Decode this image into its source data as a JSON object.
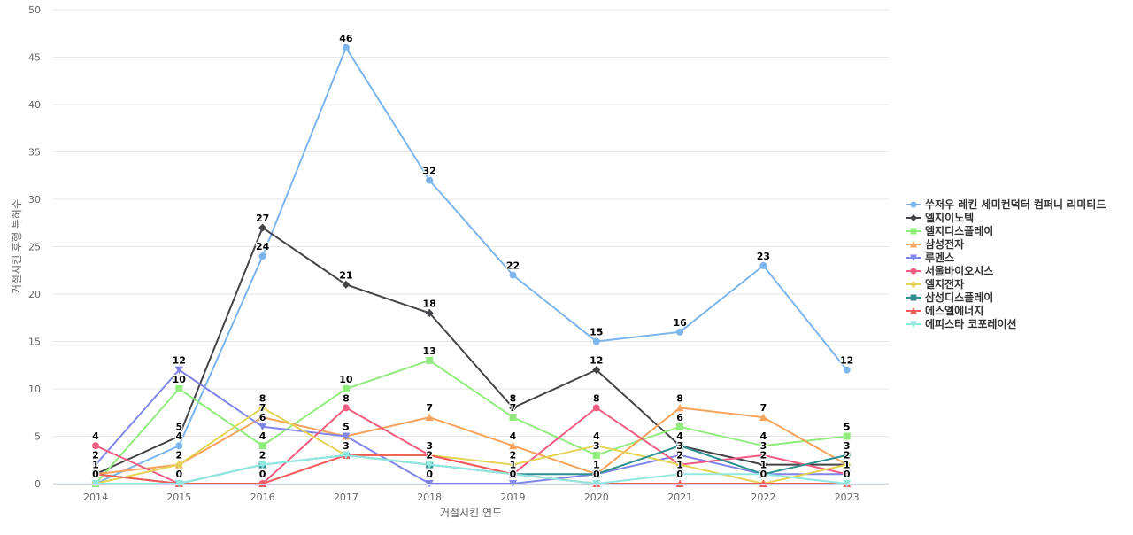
{
  "chart_data": {
    "type": "line",
    "xlabel": "거절시킨 연도",
    "ylabel": "거절시킨 후행 특허수",
    "ylim": [
      0,
      50
    ],
    "yticks": [
      0,
      5,
      10,
      15,
      20,
      25,
      30,
      35,
      40,
      45,
      50
    ],
    "categories": [
      "2014",
      "2015",
      "2016",
      "2017",
      "2018",
      "2019",
      "2020",
      "2021",
      "2022",
      "2023"
    ],
    "grid": true,
    "legend_position": "right",
    "series": [
      {
        "name": "쑤저우 레킨 세미컨덕터 컴퍼니 리미티드",
        "color": "#7cb5ec",
        "marker": "circle",
        "values": [
          0,
          4,
          24,
          46,
          32,
          22,
          15,
          16,
          23,
          12
        ]
      },
      {
        "name": "엘지이노텍",
        "color": "#434348",
        "marker": "diamond",
        "values": [
          1,
          5,
          27,
          21,
          18,
          8,
          12,
          4,
          2,
          2
        ]
      },
      {
        "name": "엘지디스플레이",
        "color": "#90ed7d",
        "marker": "square",
        "values": [
          0,
          10,
          4,
          10,
          13,
          7,
          3,
          6,
          4,
          5
        ]
      },
      {
        "name": "삼성전자",
        "color": "#f7a35c",
        "marker": "triangle",
        "values": [
          1,
          2,
          7,
          5,
          7,
          4,
          1,
          8,
          7,
          2
        ]
      },
      {
        "name": "루멘스",
        "color": "#8085e9",
        "marker": "triangle-down",
        "values": [
          2,
          12,
          6,
          5,
          0,
          0,
          1,
          3,
          1,
          1
        ]
      },
      {
        "name": "서울바이오시스",
        "color": "#f15c80",
        "marker": "circle",
        "values": [
          4,
          0,
          0,
          8,
          3,
          1,
          8,
          2,
          3,
          1
        ]
      },
      {
        "name": "엘지전자",
        "color": "#e4d354",
        "marker": "diamond",
        "values": [
          0,
          2,
          8,
          3,
          3,
          2,
          4,
          2,
          0,
          2
        ]
      },
      {
        "name": "삼성디스플레이",
        "color": "#2b908f",
        "marker": "square",
        "values": [
          1,
          0,
          2,
          3,
          2,
          1,
          1,
          4,
          1,
          3
        ]
      },
      {
        "name": "에스엘에너지",
        "color": "#f45b5b",
        "marker": "triangle",
        "values": [
          1,
          0,
          0,
          3,
          3,
          1,
          0,
          0,
          0,
          0
        ]
      },
      {
        "name": "에피스타 코포레이션",
        "color": "#91e8e1",
        "marker": "triangle-down",
        "values": [
          0,
          0,
          2,
          3,
          2,
          1,
          0,
          1,
          1,
          0
        ]
      }
    ]
  }
}
